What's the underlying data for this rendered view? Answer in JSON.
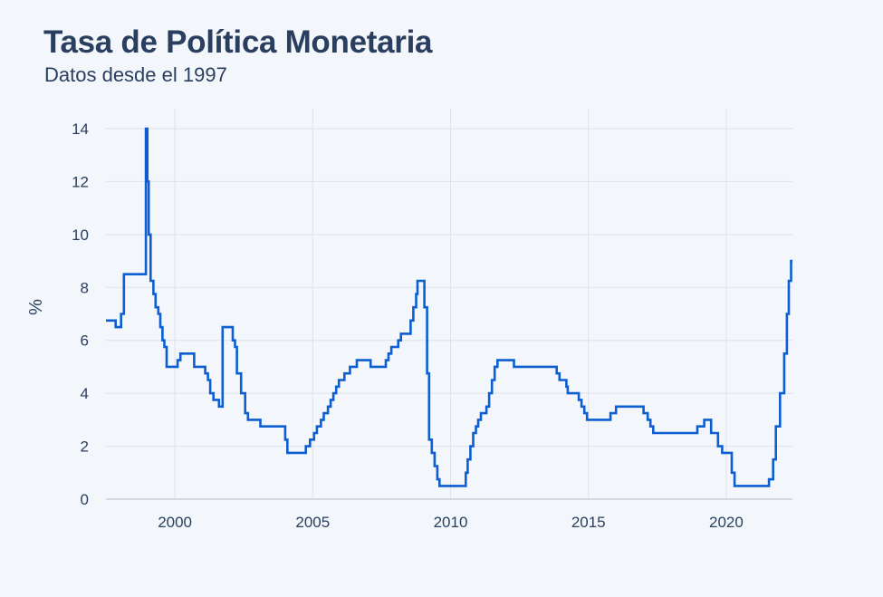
{
  "chart_data": {
    "type": "line",
    "title": "Tasa de Política Monetaria",
    "subtitle": "Datos desde el 1997",
    "xlabel": "",
    "ylabel": "%",
    "xlim": [
      1997.5,
      2022.4
    ],
    "ylim": [
      0,
      14
    ],
    "x_ticks": [
      "2000",
      "2005",
      "2010",
      "2015",
      "2020"
    ],
    "y_ticks": [
      "0",
      "2",
      "4",
      "6",
      "8",
      "10",
      "12",
      "14"
    ],
    "grid": true,
    "legend": "none",
    "line_shape": "step",
    "series": [
      {
        "color": "#0c5ed1",
        "points": [
          [
            1997.5,
            6.75
          ],
          [
            1997.85,
            6.5
          ],
          [
            1998.0,
            6.5
          ],
          [
            1998.05,
            7.0
          ],
          [
            1998.15,
            8.5
          ],
          [
            1998.9,
            8.5
          ],
          [
            1998.95,
            14.0
          ],
          [
            1998.99,
            14.0
          ],
          [
            1999.0,
            12.0
          ],
          [
            1999.05,
            10.0
          ],
          [
            1999.12,
            8.25
          ],
          [
            1999.22,
            7.75
          ],
          [
            1999.3,
            7.25
          ],
          [
            1999.4,
            7.0
          ],
          [
            1999.47,
            6.5
          ],
          [
            1999.55,
            6.0
          ],
          [
            1999.62,
            5.75
          ],
          [
            1999.7,
            5.0
          ],
          [
            2000.0,
            5.0
          ],
          [
            2000.05,
            5.0
          ],
          [
            2000.1,
            5.25
          ],
          [
            2000.2,
            5.5
          ],
          [
            2000.6,
            5.5
          ],
          [
            2000.7,
            5.0
          ],
          [
            2001.05,
            5.0
          ],
          [
            2001.1,
            4.75
          ],
          [
            2001.2,
            4.5
          ],
          [
            2001.28,
            4.0
          ],
          [
            2001.4,
            3.75
          ],
          [
            2001.6,
            3.5
          ],
          [
            2001.73,
            6.5
          ],
          [
            2002.0,
            6.5
          ],
          [
            2002.05,
            6.5
          ],
          [
            2002.1,
            6.0
          ],
          [
            2002.18,
            5.75
          ],
          [
            2002.25,
            4.75
          ],
          [
            2002.4,
            4.0
          ],
          [
            2002.55,
            3.25
          ],
          [
            2002.65,
            3.0
          ],
          [
            2003.0,
            3.0
          ],
          [
            2003.1,
            2.75
          ],
          [
            2003.95,
            2.75
          ],
          [
            2004.0,
            2.25
          ],
          [
            2004.08,
            1.75
          ],
          [
            2004.7,
            1.75
          ],
          [
            2004.75,
            2.0
          ],
          [
            2004.9,
            2.25
          ],
          [
            2005.05,
            2.5
          ],
          [
            2005.15,
            2.75
          ],
          [
            2005.3,
            3.0
          ],
          [
            2005.4,
            3.25
          ],
          [
            2005.55,
            3.5
          ],
          [
            2005.65,
            3.75
          ],
          [
            2005.75,
            4.0
          ],
          [
            2005.85,
            4.25
          ],
          [
            2005.95,
            4.5
          ],
          [
            2006.15,
            4.75
          ],
          [
            2006.35,
            5.0
          ],
          [
            2006.6,
            5.25
          ],
          [
            2007.1,
            5.0
          ],
          [
            2007.65,
            5.25
          ],
          [
            2007.75,
            5.5
          ],
          [
            2007.85,
            5.75
          ],
          [
            2008.1,
            6.0
          ],
          [
            2008.2,
            6.25
          ],
          [
            2008.55,
            6.75
          ],
          [
            2008.65,
            7.25
          ],
          [
            2008.75,
            7.75
          ],
          [
            2008.8,
            8.25
          ],
          [
            2009.05,
            7.25
          ],
          [
            2009.15,
            4.75
          ],
          [
            2009.22,
            2.25
          ],
          [
            2009.32,
            1.75
          ],
          [
            2009.42,
            1.25
          ],
          [
            2009.52,
            0.75
          ],
          [
            2009.6,
            0.5
          ],
          [
            2010.5,
            0.5
          ],
          [
            2010.55,
            1.0
          ],
          [
            2010.62,
            1.5
          ],
          [
            2010.72,
            2.0
          ],
          [
            2010.82,
            2.5
          ],
          [
            2010.92,
            2.75
          ],
          [
            2011.0,
            3.0
          ],
          [
            2011.1,
            3.25
          ],
          [
            2011.3,
            3.5
          ],
          [
            2011.4,
            4.0
          ],
          [
            2011.5,
            4.5
          ],
          [
            2011.6,
            5.0
          ],
          [
            2011.7,
            5.25
          ],
          [
            2012.0,
            5.25
          ],
          [
            2012.3,
            5.0
          ],
          [
            2013.8,
            5.0
          ],
          [
            2013.85,
            4.75
          ],
          [
            2013.95,
            4.5
          ],
          [
            2014.2,
            4.25
          ],
          [
            2014.25,
            4.0
          ],
          [
            2014.65,
            3.75
          ],
          [
            2014.75,
            3.5
          ],
          [
            2014.85,
            3.25
          ],
          [
            2014.95,
            3.0
          ],
          [
            2015.8,
            3.25
          ],
          [
            2016.0,
            3.5
          ],
          [
            2017.0,
            3.25
          ],
          [
            2017.15,
            3.0
          ],
          [
            2017.25,
            2.75
          ],
          [
            2017.35,
            2.5
          ],
          [
            2018.95,
            2.75
          ],
          [
            2019.2,
            3.0
          ],
          [
            2019.45,
            2.5
          ],
          [
            2019.7,
            2.0
          ],
          [
            2019.85,
            1.75
          ],
          [
            2020.2,
            1.0
          ],
          [
            2020.3,
            0.5
          ],
          [
            2021.55,
            0.75
          ],
          [
            2021.7,
            1.5
          ],
          [
            2021.8,
            2.75
          ],
          [
            2021.95,
            4.0
          ],
          [
            2022.1,
            5.5
          ],
          [
            2022.2,
            7.0
          ],
          [
            2022.27,
            8.25
          ],
          [
            2022.35,
            9.0
          ],
          [
            2022.4,
            9.0
          ]
        ]
      }
    ]
  }
}
